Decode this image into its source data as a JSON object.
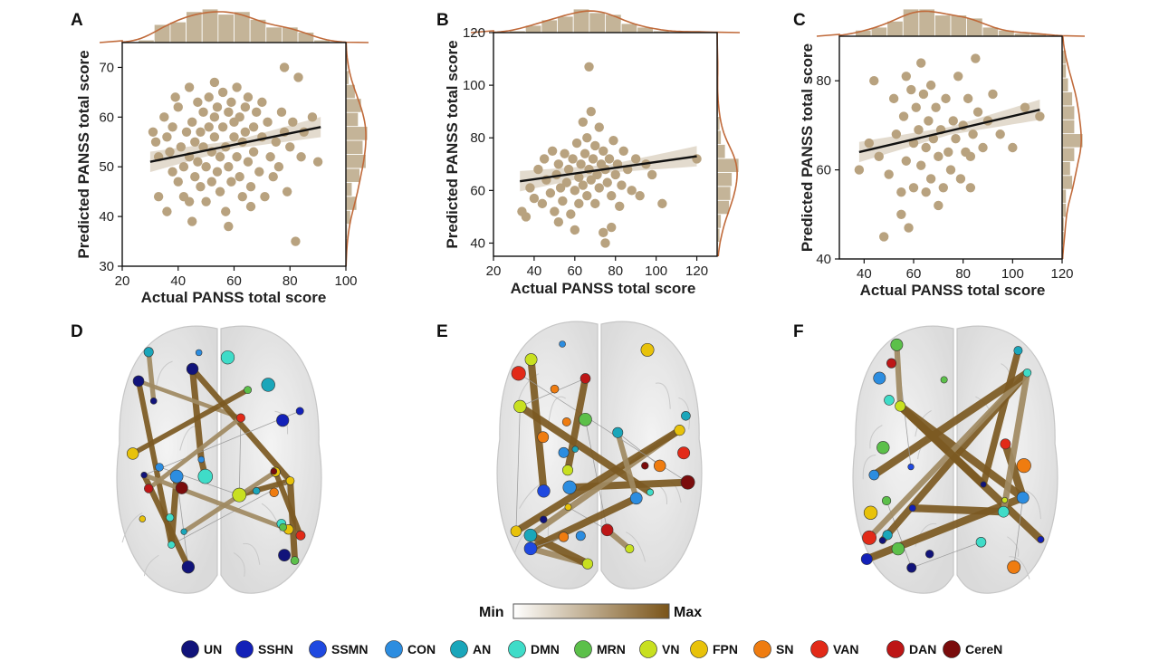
{
  "chart_data": [
    {
      "panel": "A",
      "type": "scatter",
      "xlabel": "Actual PANSS total score",
      "ylabel": "Predicted PANSS total score",
      "xlim": [
        20,
        100
      ],
      "ylim": [
        30,
        75
      ],
      "xticks": [
        20,
        40,
        60,
        80,
        100
      ],
      "yticks": [
        30,
        40,
        50,
        60,
        70
      ],
      "regression": {
        "x0": 30,
        "y0": 51,
        "x1": 91,
        "y1": 58
      },
      "points": [
        [
          31,
          57
        ],
        [
          32,
          55
        ],
        [
          33,
          52
        ],
        [
          33,
          44
        ],
        [
          35,
          60
        ],
        [
          36,
          56
        ],
        [
          37,
          53
        ],
        [
          38,
          49
        ],
        [
          38,
          58
        ],
        [
          40,
          62
        ],
        [
          40,
          47
        ],
        [
          41,
          54
        ],
        [
          42,
          50
        ],
        [
          42,
          44
        ],
        [
          43,
          57
        ],
        [
          44,
          66
        ],
        [
          44,
          52
        ],
        [
          45,
          59
        ],
        [
          45,
          39
        ],
        [
          46,
          48
        ],
        [
          46,
          55
        ],
        [
          47,
          63
        ],
        [
          47,
          51
        ],
        [
          48,
          46
        ],
        [
          48,
          57
        ],
        [
          49,
          54
        ],
        [
          49,
          61
        ],
        [
          50,
          43
        ],
        [
          50,
          50
        ],
        [
          51,
          58
        ],
        [
          51,
          64
        ],
        [
          52,
          53
        ],
        [
          52,
          47
        ],
        [
          53,
          60
        ],
        [
          53,
          56
        ],
        [
          54,
          49
        ],
        [
          54,
          62
        ],
        [
          55,
          52
        ],
        [
          55,
          45
        ],
        [
          56,
          58
        ],
        [
          56,
          65
        ],
        [
          57,
          54
        ],
        [
          57,
          41
        ],
        [
          58,
          61
        ],
        [
          58,
          50
        ],
        [
          59,
          63
        ],
        [
          59,
          47
        ],
        [
          60,
          56
        ],
        [
          60,
          59
        ],
        [
          61,
          52
        ],
        [
          61,
          66
        ],
        [
          62,
          48
        ],
        [
          62,
          60
        ],
        [
          63,
          55
        ],
        [
          63,
          44
        ],
        [
          64,
          62
        ],
        [
          64,
          57
        ],
        [
          65,
          51
        ],
        [
          65,
          64
        ],
        [
          66,
          46
        ],
        [
          67,
          58
        ],
        [
          67,
          53
        ],
        [
          68,
          61
        ],
        [
          69,
          49
        ],
        [
          70,
          56
        ],
        [
          70,
          63
        ],
        [
          71,
          44
        ],
        [
          72,
          59
        ],
        [
          73,
          52
        ],
        [
          74,
          48
        ],
        [
          75,
          55
        ],
        [
          76,
          50
        ],
        [
          77,
          61
        ],
        [
          78,
          70
        ],
        [
          78,
          57
        ],
        [
          79,
          45
        ],
        [
          80,
          54
        ],
        [
          81,
          59
        ],
        [
          82,
          35
        ],
        [
          83,
          68
        ],
        [
          84,
          52
        ],
        [
          85,
          57
        ],
        [
          88,
          60
        ],
        [
          90,
          51
        ],
        [
          58,
          38
        ],
        [
          44,
          43
        ],
        [
          66,
          42
        ],
        [
          53,
          67
        ],
        [
          39,
          64
        ],
        [
          36,
          41
        ]
      ]
    },
    {
      "panel": "B",
      "type": "scatter",
      "xlabel": "Actual PANSS total score",
      "ylabel": "Predicted PANSS total score",
      "xlim": [
        20,
        130
      ],
      "ylim": [
        35,
        120
      ],
      "xticks": [
        20,
        40,
        60,
        80,
        100,
        120
      ],
      "yticks": [
        40,
        60,
        80,
        100,
        120
      ],
      "regression": {
        "x0": 33,
        "y0": 63.5,
        "x1": 120,
        "y1": 73
      },
      "points": [
        [
          34,
          52
        ],
        [
          36,
          50
        ],
        [
          38,
          61
        ],
        [
          40,
          57
        ],
        [
          42,
          68
        ],
        [
          44,
          55
        ],
        [
          45,
          72
        ],
        [
          46,
          64
        ],
        [
          48,
          59
        ],
        [
          49,
          75
        ],
        [
          50,
          52
        ],
        [
          51,
          66
        ],
        [
          52,
          70
        ],
        [
          53,
          61
        ],
        [
          54,
          56
        ],
        [
          55,
          74
        ],
        [
          56,
          63
        ],
        [
          57,
          68
        ],
        [
          58,
          51
        ],
        [
          59,
          72
        ],
        [
          60,
          60
        ],
        [
          61,
          78
        ],
        [
          62,
          65
        ],
        [
          62,
          55
        ],
        [
          63,
          70
        ],
        [
          64,
          86
        ],
        [
          64,
          62
        ],
        [
          65,
          74
        ],
        [
          66,
          58
        ],
        [
          66,
          80
        ],
        [
          67,
          68
        ],
        [
          67,
          107
        ],
        [
          68,
          64
        ],
        [
          69,
          72
        ],
        [
          70,
          55
        ],
        [
          70,
          77
        ],
        [
          71,
          66
        ],
        [
          72,
          61
        ],
        [
          72,
          84
        ],
        [
          73,
          70
        ],
        [
          74,
          44
        ],
        [
          74,
          75
        ],
        [
          75,
          68
        ],
        [
          75,
          40
        ],
        [
          76,
          63
        ],
        [
          77,
          72
        ],
        [
          78,
          58
        ],
        [
          79,
          79
        ],
        [
          80,
          66
        ],
        [
          81,
          70
        ],
        [
          82,
          54
        ],
        [
          83,
          62
        ],
        [
          84,
          75
        ],
        [
          86,
          68
        ],
        [
          88,
          60
        ],
        [
          90,
          72
        ],
        [
          92,
          58
        ],
        [
          95,
          70
        ],
        [
          98,
          66
        ],
        [
          103,
          55
        ],
        [
          120,
          72
        ],
        [
          60,
          45
        ],
        [
          52,
          48
        ],
        [
          78,
          46
        ],
        [
          68,
          90
        ]
      ]
    },
    {
      "panel": "C",
      "type": "scatter",
      "xlabel": "Actual PANSS total score",
      "ylabel": "Predicted PANSS total score",
      "xlim": [
        30,
        120
      ],
      "ylim": [
        40,
        90
      ],
      "xticks": [
        40,
        60,
        80,
        100,
        120
      ],
      "yticks": [
        40,
        60,
        80
      ],
      "regression": {
        "x0": 38,
        "y0": 64,
        "x1": 111,
        "y1": 73.5
      },
      "points": [
        [
          38,
          60
        ],
        [
          42,
          66
        ],
        [
          44,
          80
        ],
        [
          46,
          63
        ],
        [
          48,
          45
        ],
        [
          50,
          59
        ],
        [
          52,
          76
        ],
        [
          53,
          68
        ],
        [
          55,
          55
        ],
        [
          56,
          72
        ],
        [
          57,
          81
        ],
        [
          57,
          62
        ],
        [
          58,
          47
        ],
        [
          59,
          78
        ],
        [
          60,
          66
        ],
        [
          60,
          56
        ],
        [
          61,
          74
        ],
        [
          62,
          69
        ],
        [
          63,
          84
        ],
        [
          63,
          61
        ],
        [
          64,
          77
        ],
        [
          65,
          65
        ],
        [
          65,
          55
        ],
        [
          66,
          71
        ],
        [
          67,
          79
        ],
        [
          67,
          58
        ],
        [
          68,
          67
        ],
        [
          69,
          74
        ],
        [
          70,
          63
        ],
        [
          71,
          69
        ],
        [
          72,
          56
        ],
        [
          73,
          76
        ],
        [
          74,
          64
        ],
        [
          75,
          60
        ],
        [
          76,
          71
        ],
        [
          77,
          67
        ],
        [
          78,
          81
        ],
        [
          79,
          58
        ],
        [
          80,
          70
        ],
        [
          81,
          64
        ],
        [
          82,
          76
        ],
        [
          83,
          56
        ],
        [
          84,
          68
        ],
        [
          85,
          85
        ],
        [
          86,
          73
        ],
        [
          88,
          65
        ],
        [
          90,
          71
        ],
        [
          92,
          77
        ],
        [
          95,
          68
        ],
        [
          100,
          65
        ],
        [
          105,
          74
        ],
        [
          111,
          72
        ],
        [
          55,
          50
        ],
        [
          70,
          52
        ],
        [
          83,
          63
        ]
      ]
    }
  ],
  "panels": {
    "A": "A",
    "B": "B",
    "C": "C",
    "D": "D",
    "E": "E",
    "F": "F"
  },
  "colorbar": {
    "min": "Min",
    "max": "Max"
  },
  "legend": [
    {
      "label": "UN",
      "color": "#11137a"
    },
    {
      "label": "SSHN",
      "color": "#1321b8"
    },
    {
      "label": "SSMN",
      "color": "#1f49e0"
    },
    {
      "label": "CON",
      "color": "#2c8de0"
    },
    {
      "label": "AN",
      "color": "#1aa6ba"
    },
    {
      "label": "DMN",
      "color": "#3fdcc8"
    },
    {
      "label": "MRN",
      "color": "#5cc04a"
    },
    {
      "label": "VN",
      "color": "#c8e020"
    },
    {
      "label": "FPN",
      "color": "#e8c20a"
    },
    {
      "label": "SN",
      "color": "#ef7c10"
    },
    {
      "label": "VAN",
      "color": "#e22a18"
    },
    {
      "label": "DAN",
      "color": "#bd1616"
    },
    {
      "label": "CereN",
      "color": "#7a0c0c"
    }
  ],
  "colors": {
    "points": "#b8a27f",
    "hist": "#c4b498",
    "density": "#c06a3a",
    "bar": "#7c5a22"
  }
}
